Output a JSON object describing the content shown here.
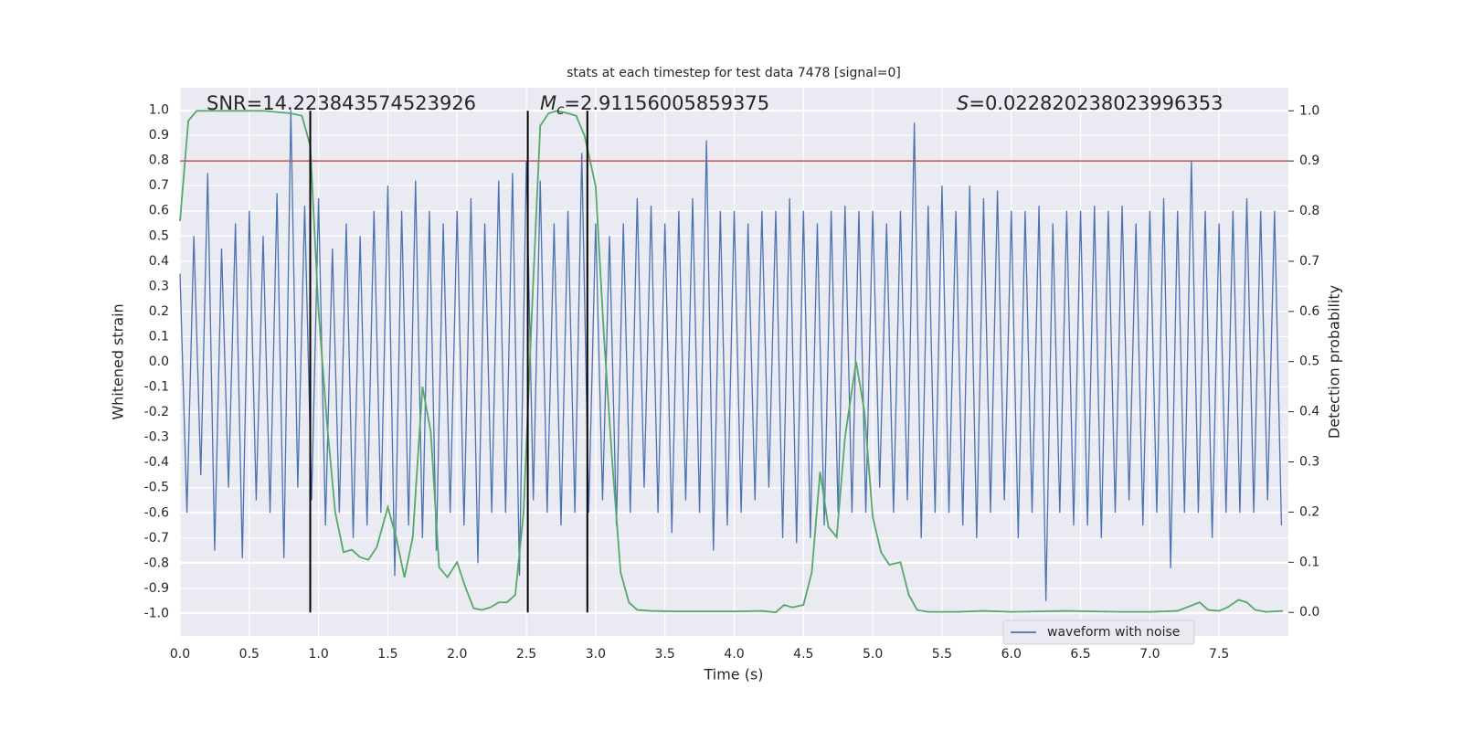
{
  "chart_data": {
    "type": "line",
    "title": "stats at each timestep for test data 7478 [signal=0]",
    "xlabel": "Time (s)",
    "ylabel": "Whitened strain",
    "y2label": "Detection probability",
    "xlim": [
      0,
      8
    ],
    "ylim": [
      -1.089,
      1.089
    ],
    "y2lim": [
      -0.047,
      1.046
    ],
    "grid": true,
    "legend": "lower right",
    "xticks": [
      {
        "value": 0,
        "label": "0.0"
      },
      0.5,
      {
        "value": 1,
        "label": "1.0"
      },
      1.5,
      {
        "value": 2,
        "label": "2.0"
      },
      2.5,
      {
        "value": 3,
        "label": "3.0"
      },
      3.5,
      {
        "value": 4,
        "label": "4.0"
      },
      4.5,
      {
        "value": 5,
        "label": "5.0"
      },
      5.5,
      {
        "value": 6,
        "label": "6.0"
      },
      6.5,
      {
        "value": 7,
        "label": "7.0"
      },
      7.5
    ],
    "yticks": [
      {
        "value": -1,
        "label": "-1.0"
      },
      -0.9,
      -0.8,
      -0.7,
      -0.6,
      -0.5,
      -0.4,
      -0.3,
      -0.2,
      -0.1,
      {
        "value": 0,
        "label": "0.0"
      },
      0.1,
      0.2,
      0.3,
      0.4,
      0.5,
      0.6,
      0.7,
      0.8,
      0.9,
      {
        "value": 1,
        "label": "1.0"
      }
    ],
    "y2ticks": [
      {
        "value": 0,
        "label": "0.0"
      },
      0.1,
      0.2,
      0.3,
      0.4,
      0.5,
      0.6,
      0.7,
      0.8,
      0.9,
      {
        "value": 1,
        "label": "1.0"
      }
    ],
    "annotations": [
      {
        "text": "SNR=14.223843574523926"
      },
      {
        "symbol": "M",
        "subscript": "c",
        "text": "=2.91156005859375"
      },
      {
        "symbol": "S",
        "text": "=0.022820238023996353"
      }
    ],
    "hline": {
      "value": 0.9,
      "axis": "y2",
      "color": "#c44e52"
    },
    "vlines": {
      "values": [
        0.94,
        2.51,
        2.94
      ],
      "color": "#000000"
    },
    "series": [
      {
        "name": "waveform with noise",
        "color": "#4c72b0",
        "x": [
          0,
          0.05,
          0.1,
          0.15,
          0.2,
          0.25,
          0.3,
          0.35,
          0.4,
          0.45,
          0.5,
          0.55,
          0.6,
          0.65,
          0.7,
          0.75,
          0.8,
          0.85,
          0.9,
          0.95,
          1,
          1.05,
          1.1,
          1.15,
          1.2,
          1.25,
          1.3,
          1.35,
          1.4,
          1.45,
          1.5,
          1.55,
          1.6,
          1.65,
          1.7,
          1.75,
          1.8,
          1.85,
          1.9,
          1.95,
          2,
          2.05,
          2.1,
          2.15,
          2.2,
          2.25,
          2.3,
          2.35,
          2.4,
          2.45,
          2.5,
          2.55,
          2.6,
          2.65,
          2.7,
          2.75,
          2.8,
          2.85,
          2.9,
          2.95,
          3,
          3.05,
          3.1,
          3.15,
          3.2,
          3.25,
          3.3,
          3.35,
          3.4,
          3.45,
          3.5,
          3.55,
          3.6,
          3.65,
          3.7,
          3.75,
          3.8,
          3.85,
          3.9,
          3.95,
          4,
          4.05,
          4.1,
          4.15,
          4.2,
          4.25,
          4.3,
          4.35,
          4.4,
          4.45,
          4.5,
          4.55,
          4.6,
          4.65,
          4.7,
          4.75,
          4.8,
          4.85,
          4.9,
          4.95,
          5,
          5.05,
          5.1,
          5.15,
          5.2,
          5.25,
          5.3,
          5.35,
          5.4,
          5.45,
          5.5,
          5.55,
          5.6,
          5.65,
          5.7,
          5.75,
          5.8,
          5.85,
          5.9,
          5.95,
          6,
          6.05,
          6.1,
          6.15,
          6.2,
          6.25,
          6.3,
          6.35,
          6.4,
          6.45,
          6.5,
          6.55,
          6.6,
          6.65,
          6.7,
          6.75,
          6.8,
          6.85,
          6.9,
          6.95,
          7,
          7.05,
          7.1,
          7.15,
          7.2,
          7.25,
          7.3,
          7.35,
          7.4,
          7.45,
          7.5,
          7.55,
          7.6,
          7.65,
          7.7,
          7.75,
          7.8,
          7.85,
          7.9,
          7.95
        ],
        "values": [
          0.35,
          -0.6,
          0.5,
          -0.45,
          0.75,
          -0.75,
          0.45,
          -0.5,
          0.55,
          -0.78,
          0.6,
          -0.55,
          0.5,
          -0.6,
          0.67,
          -0.78,
          1.0,
          -0.5,
          0.62,
          -0.55,
          0.65,
          -0.65,
          0.45,
          -0.6,
          0.55,
          -0.7,
          0.5,
          -0.65,
          0.6,
          -0.6,
          0.7,
          -0.85,
          0.6,
          -0.65,
          0.72,
          -0.7,
          0.6,
          -0.75,
          0.55,
          -0.6,
          0.6,
          -0.65,
          0.65,
          -0.8,
          0.55,
          -0.6,
          0.72,
          -0.6,
          0.75,
          -0.85,
          0.8,
          -0.55,
          0.72,
          -0.6,
          0.55,
          -0.65,
          0.6,
          -0.6,
          0.83,
          -0.6,
          0.55,
          -0.55,
          0.5,
          -0.65,
          0.55,
          -0.6,
          0.65,
          -0.5,
          0.62,
          -0.6,
          0.55,
          -0.68,
          0.6,
          -0.55,
          0.65,
          -0.6,
          0.88,
          -0.75,
          0.6,
          -0.65,
          0.6,
          -0.6,
          0.55,
          -0.55,
          0.6,
          -0.5,
          0.6,
          -0.7,
          0.65,
          -0.72,
          0.6,
          -0.7,
          0.55,
          -0.65,
          0.6,
          -0.6,
          0.62,
          -0.6,
          0.6,
          -0.6,
          0.6,
          -0.5,
          0.55,
          -0.6,
          0.6,
          -0.55,
          0.95,
          -0.7,
          0.62,
          -0.6,
          0.7,
          -0.6,
          0.6,
          -0.65,
          0.7,
          -0.7,
          0.65,
          -0.6,
          0.68,
          -0.55,
          0.6,
          -0.7,
          0.6,
          -0.6,
          0.62,
          -0.95,
          0.55,
          -0.6,
          0.6,
          -0.65,
          0.6,
          -0.65,
          0.62,
          -0.7,
          0.6,
          -0.6,
          0.62,
          -0.55,
          0.55,
          -0.65,
          0.6,
          -0.6,
          0.65,
          -0.82,
          0.6,
          -0.6,
          0.8,
          -0.6,
          0.6,
          -0.7,
          0.55,
          -0.6,
          0.6,
          -0.6,
          0.65,
          -0.6,
          0.6,
          -0.55,
          0.6,
          -0.65
        ]
      },
      {
        "color": "#55a868",
        "axis": "y2",
        "x": [
          0,
          0.06,
          0.12,
          0.4,
          0.6,
          0.8,
          0.88,
          0.94,
          1,
          1.06,
          1.12,
          1.18,
          1.24,
          1.3,
          1.36,
          1.42,
          1.5,
          1.56,
          1.62,
          1.68,
          1.75,
          1.81,
          1.87,
          1.93,
          2,
          2.06,
          2.12,
          2.18,
          2.24,
          2.3,
          2.36,
          2.42,
          2.48,
          2.54,
          2.6,
          2.66,
          2.72,
          2.8,
          2.86,
          2.92,
          3,
          3.06,
          3.12,
          3.18,
          3.24,
          3.3,
          3.4,
          3.6,
          3.8,
          4,
          4.2,
          4.3,
          4.36,
          4.42,
          4.5,
          4.56,
          4.62,
          4.68,
          4.74,
          4.8,
          4.88,
          4.94,
          5,
          5.06,
          5.12,
          5.2,
          5.26,
          5.32,
          5.4,
          5.6,
          5.8,
          6,
          6.2,
          6.4,
          6.6,
          6.8,
          7,
          7.2,
          7.36,
          7.42,
          7.5,
          7.56,
          7.64,
          7.7,
          7.76,
          7.84,
          7.96
        ],
        "values": [
          0.78,
          0.98,
          1.0,
          1.0,
          1.0,
          0.995,
          0.99,
          0.93,
          0.6,
          0.38,
          0.2,
          0.12,
          0.125,
          0.11,
          0.105,
          0.13,
          0.21,
          0.15,
          0.07,
          0.15,
          0.45,
          0.36,
          0.09,
          0.07,
          0.1,
          0.05,
          0.008,
          0.005,
          0.01,
          0.02,
          0.02,
          0.035,
          0.2,
          0.6,
          0.97,
          0.995,
          1.0,
          0.995,
          0.99,
          0.95,
          0.85,
          0.55,
          0.3,
          0.08,
          0.02,
          0.005,
          0.003,
          0.002,
          0.002,
          0.002,
          0.003,
          0.0,
          0.015,
          0.01,
          0.015,
          0.08,
          0.28,
          0.17,
          0.15,
          0.35,
          0.5,
          0.4,
          0.19,
          0.12,
          0.095,
          0.1,
          0.035,
          0.005,
          0.001,
          0.001,
          0.003,
          0.001,
          0.002,
          0.003,
          0.002,
          0.001,
          0.001,
          0.003,
          0.02,
          0.005,
          0.003,
          0.01,
          0.025,
          0.02,
          0.005,
          0.001,
          0.003
        ]
      }
    ]
  }
}
